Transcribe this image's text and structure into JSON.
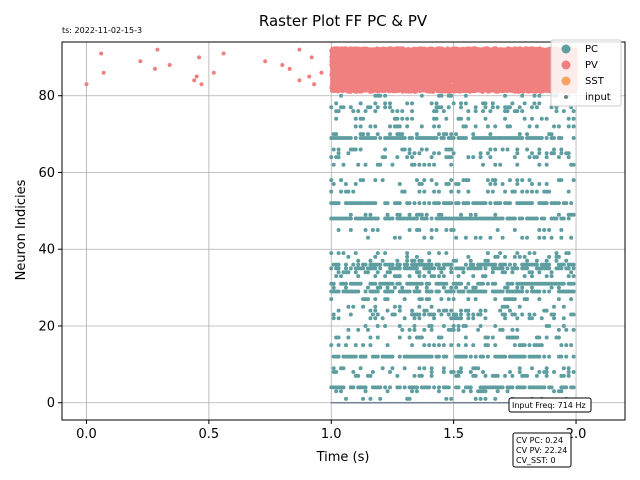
{
  "chart_data": {
    "type": "scatter",
    "title": "Raster Plot FF PC & PV",
    "timestamp": "ts: 2022-11-02-15-3",
    "xlabel": "Time (s)",
    "ylabel": "Neuron Indicies",
    "xlim": [
      -0.1,
      2.2
    ],
    "ylim": [
      -4.5,
      94
    ],
    "x_ticks": [
      0.0,
      0.5,
      1.0,
      1.5,
      2.0
    ],
    "x_tick_labels": [
      "0.0",
      "0.5",
      "1.0",
      "1.5",
      "2.0"
    ],
    "y_ticks": [
      0,
      20,
      40,
      60,
      80
    ],
    "y_tick_labels": [
      "0",
      "20",
      "40",
      "60",
      "80"
    ],
    "grid": true,
    "legend_position": "top-right",
    "legend": [
      {
        "name": "PC",
        "color": "#5f9ea0"
      },
      {
        "name": "PV",
        "color": "#f08080"
      },
      {
        "name": "SST",
        "color": "#f4a460"
      },
      {
        "name": "input",
        "color": "#708090"
      }
    ],
    "annotation_input_freq": "Input Freq: 714 Hz",
    "annotation_cv": [
      "CV PC: 0.24",
      "CV PV: 22.24",
      "CV_SST: 0"
    ],
    "pc": {
      "color": "#5f9ea0",
      "t_start": 1.0,
      "t_end": 2.0,
      "rows": [
        1,
        3,
        4,
        7,
        8,
        9,
        12,
        15,
        17,
        19,
        20,
        22,
        23,
        24,
        25,
        27,
        29,
        30,
        31,
        33,
        34,
        35,
        36,
        37,
        38,
        39,
        43,
        45,
        48,
        49,
        52,
        55,
        57,
        58,
        62,
        64,
        65,
        66,
        69,
        70,
        72,
        74,
        76,
        77,
        78,
        80
      ],
      "dense_rows": [
        4,
        12,
        29,
        31,
        35,
        36,
        48,
        52,
        69
      ]
    },
    "pv": {
      "color": "#f08080",
      "t_start": 1.0,
      "t_end": 2.0,
      "row_min": 81,
      "row_max": 92,
      "early_points": [
        [
          0.0,
          83
        ],
        [
          0.06,
          91
        ],
        [
          0.07,
          86
        ],
        [
          0.22,
          89
        ],
        [
          0.28,
          87
        ],
        [
          0.29,
          92
        ],
        [
          0.34,
          88
        ],
        [
          0.44,
          84
        ],
        [
          0.45,
          85
        ],
        [
          0.46,
          90
        ],
        [
          0.47,
          83
        ],
        [
          0.52,
          86
        ],
        [
          0.56,
          91
        ],
        [
          0.73,
          89
        ],
        [
          0.8,
          88
        ],
        [
          0.83,
          87
        ],
        [
          0.87,
          84
        ],
        [
          0.87,
          92
        ],
        [
          0.91,
          85
        ],
        [
          0.92,
          90
        ],
        [
          0.93,
          83
        ],
        [
          0.96,
          86
        ]
      ]
    },
    "input": {
      "color": "#708090",
      "t_start": 1.0,
      "t_end": 2.0,
      "row": 0
    }
  }
}
